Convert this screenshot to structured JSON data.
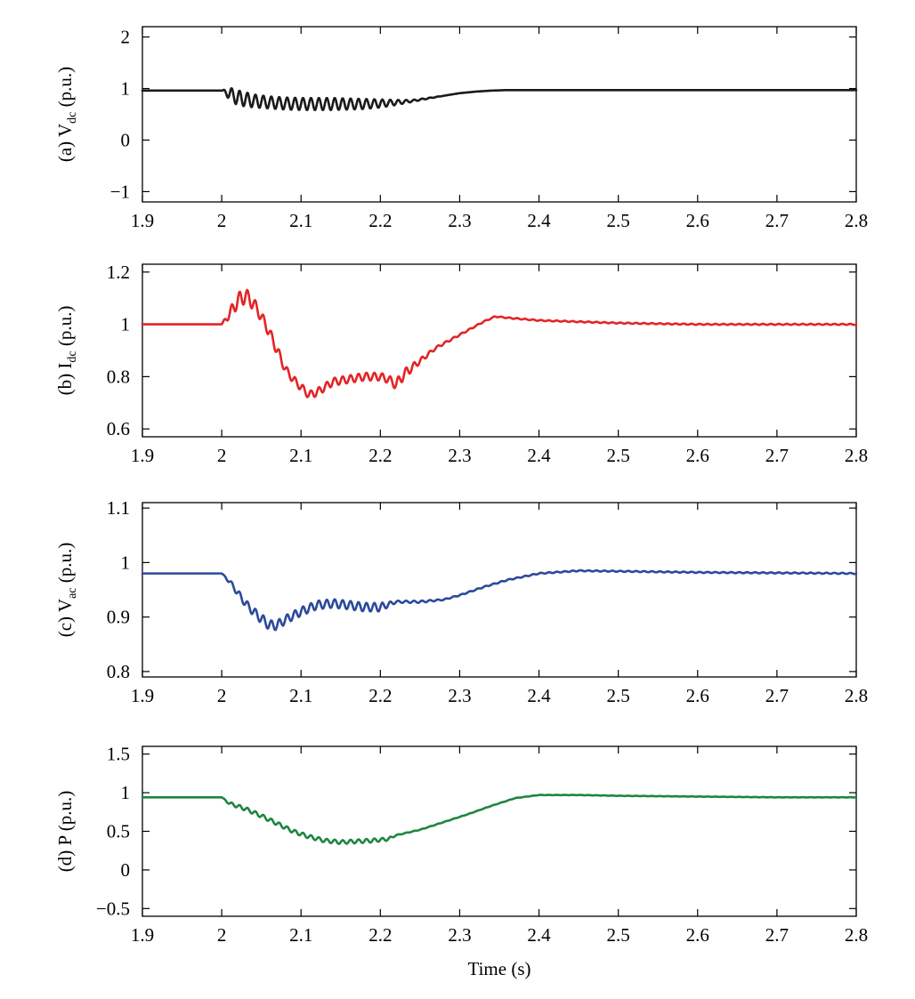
{
  "chart_data": [
    {
      "type": "line",
      "panel": "(a)",
      "ylabel_prefix": "(a) V",
      "ylabel_sub": "dc",
      "ylabel_suffix": " (p.u.)",
      "xlabel": "",
      "xlim": [
        1.9,
        2.8
      ],
      "ylim": [
        -1.2,
        2.2
      ],
      "xticks": [
        1.9,
        2.0,
        2.1,
        2.2,
        2.3,
        2.4,
        2.5,
        2.6,
        2.7,
        2.8
      ],
      "xtick_labels": [
        "1.9",
        "2",
        "2.1",
        "2.2",
        "2.3",
        "2.4",
        "2.5",
        "2.6",
        "2.7",
        "2.8"
      ],
      "yticks": [
        -1,
        0,
        1,
        2
      ],
      "ytick_labels": [
        "−1",
        "0",
        "1",
        "2"
      ],
      "color": "#1a1a1a",
      "series": [
        {
          "x": [
            1.9,
            2.0,
            2.01,
            2.02,
            2.04,
            2.06,
            2.08,
            2.1,
            2.12,
            2.14,
            2.16,
            2.18,
            2.2,
            2.22,
            2.24,
            2.26,
            2.28,
            2.3,
            2.32,
            2.34,
            2.36,
            2.4,
            2.5,
            2.6,
            2.7,
            2.8
          ],
          "y": [
            0.96,
            0.96,
            0.9,
            0.82,
            0.76,
            0.73,
            0.71,
            0.7,
            0.7,
            0.7,
            0.7,
            0.7,
            0.71,
            0.73,
            0.76,
            0.81,
            0.86,
            0.91,
            0.94,
            0.96,
            0.97,
            0.97,
            0.97,
            0.97,
            0.97,
            0.97
          ],
          "osc_amplitude": [
            0,
            0,
            0.12,
            0.15,
            0.13,
            0.12,
            0.12,
            0.12,
            0.12,
            0.12,
            0.11,
            0.1,
            0.08,
            0.05,
            0.02,
            0.01,
            0,
            0,
            0,
            0,
            0,
            0,
            0,
            0,
            0,
            0
          ],
          "osc_period": 0.01
        }
      ]
    },
    {
      "type": "line",
      "panel": "(b)",
      "ylabel_prefix": "(b) I",
      "ylabel_sub": "dc",
      "ylabel_suffix": " (p.u.)",
      "xlabel": "",
      "xlim": [
        1.9,
        2.8
      ],
      "ylim": [
        0.57,
        1.23
      ],
      "xticks": [
        1.9,
        2.0,
        2.1,
        2.2,
        2.3,
        2.4,
        2.5,
        2.6,
        2.7,
        2.8
      ],
      "xtick_labels": [
        "1.9",
        "2",
        "2.1",
        "2.2",
        "2.3",
        "2.4",
        "2.5",
        "2.6",
        "2.7",
        "2.8"
      ],
      "yticks": [
        0.6,
        0.8,
        1.0,
        1.2
      ],
      "ytick_labels": [
        "0.6",
        "0.8",
        "1",
        "1.2"
      ],
      "color": "#e32426",
      "series": [
        {
          "x": [
            1.9,
            2.0,
            2.01,
            2.02,
            2.03,
            2.04,
            2.05,
            2.06,
            2.07,
            2.08,
            2.09,
            2.1,
            2.11,
            2.12,
            2.13,
            2.14,
            2.16,
            2.18,
            2.2,
            2.21,
            2.22,
            2.23,
            2.25,
            2.27,
            2.3,
            2.33,
            2.345,
            2.36,
            2.4,
            2.5,
            2.6,
            2.7,
            2.8
          ],
          "y": [
            1.0,
            1.0,
            1.04,
            1.09,
            1.11,
            1.08,
            1.03,
            0.97,
            0.9,
            0.83,
            0.79,
            0.76,
            0.73,
            0.74,
            0.76,
            0.78,
            0.79,
            0.8,
            0.8,
            0.79,
            0.77,
            0.81,
            0.86,
            0.91,
            0.96,
            1.01,
            1.03,
            1.025,
            1.015,
            1.005,
            1.0,
            1.0,
            1.0
          ],
          "osc_amplitude": [
            0,
            0,
            0.02,
            0.03,
            0.03,
            0.025,
            0.02,
            0.02,
            0.02,
            0.015,
            0.015,
            0.015,
            0.015,
            0.015,
            0.015,
            0.015,
            0.015,
            0.015,
            0.015,
            0.015,
            0.02,
            0.02,
            0.01,
            0.005,
            0.003,
            0.002,
            0.002,
            0.002,
            0.002,
            0.002,
            0.002,
            0.002,
            0.002
          ],
          "osc_period": 0.01
        }
      ]
    },
    {
      "type": "line",
      "panel": "(c)",
      "ylabel_prefix": "(c) V",
      "ylabel_sub": "ac",
      "ylabel_suffix": " (p.u.)",
      "xlabel": "",
      "xlim": [
        1.9,
        2.8
      ],
      "ylim": [
        0.79,
        1.11
      ],
      "xticks": [
        1.9,
        2.0,
        2.1,
        2.2,
        2.3,
        2.4,
        2.5,
        2.6,
        2.7,
        2.8
      ],
      "xtick_labels": [
        "1.9",
        "2",
        "2.1",
        "2.2",
        "2.3",
        "2.4",
        "2.5",
        "2.6",
        "2.7",
        "2.8"
      ],
      "yticks": [
        0.8,
        0.9,
        1.0,
        1.1
      ],
      "ytick_labels": [
        "0.8",
        "0.9",
        "1",
        "1.1"
      ],
      "color": "#2b4a9c",
      "series": [
        {
          "x": [
            1.9,
            2.0,
            2.01,
            2.02,
            2.03,
            2.04,
            2.05,
            2.06,
            2.07,
            2.08,
            2.1,
            2.12,
            2.14,
            2.16,
            2.18,
            2.2,
            2.22,
            2.25,
            2.28,
            2.3,
            2.33,
            2.36,
            2.4,
            2.45,
            2.5,
            2.6,
            2.7,
            2.8
          ],
          "y": [
            0.98,
            0.98,
            0.965,
            0.945,
            0.925,
            0.91,
            0.897,
            0.885,
            0.885,
            0.895,
            0.91,
            0.922,
            0.925,
            0.922,
            0.918,
            0.918,
            0.928,
            0.928,
            0.932,
            0.94,
            0.955,
            0.968,
            0.98,
            0.985,
            0.984,
            0.982,
            0.981,
            0.98
          ],
          "osc_amplitude": [
            0,
            0,
            0.004,
            0.006,
            0.007,
            0.008,
            0.009,
            0.009,
            0.009,
            0.008,
            0.008,
            0.008,
            0.008,
            0.008,
            0.008,
            0.008,
            0.002,
            0.002,
            0.001,
            0.001,
            0.001,
            0.001,
            0.001,
            0.001,
            0.001,
            0.001,
            0.001,
            0.001
          ],
          "osc_period": 0.01
        }
      ]
    },
    {
      "type": "line",
      "panel": "(d)",
      "ylabel_prefix": "(d) P (p.u.)",
      "ylabel_sub": "",
      "ylabel_suffix": "",
      "xlabel": "Time (s)",
      "xlim": [
        1.9,
        2.8
      ],
      "ylim": [
        -0.6,
        1.6
      ],
      "xticks": [
        1.9,
        2.0,
        2.1,
        2.2,
        2.3,
        2.4,
        2.5,
        2.6,
        2.7,
        2.8
      ],
      "xtick_labels": [
        "1.9",
        "2",
        "2.1",
        "2.2",
        "2.3",
        "2.4",
        "2.5",
        "2.6",
        "2.7",
        "2.8"
      ],
      "yticks": [
        -0.5,
        0,
        0.5,
        1.0,
        1.5
      ],
      "ytick_labels": [
        "−0.5",
        "0",
        "0.5",
        "1",
        "1.5"
      ],
      "color": "#1e8540",
      "series": [
        {
          "x": [
            1.9,
            2.0,
            2.01,
            2.03,
            2.05,
            2.07,
            2.09,
            2.11,
            2.13,
            2.15,
            2.17,
            2.19,
            2.21,
            2.22,
            2.25,
            2.28,
            2.31,
            2.34,
            2.37,
            2.4,
            2.45,
            2.5,
            2.6,
            2.7,
            2.8
          ],
          "y": [
            0.94,
            0.94,
            0.86,
            0.79,
            0.7,
            0.6,
            0.5,
            0.43,
            0.38,
            0.36,
            0.37,
            0.38,
            0.4,
            0.45,
            0.52,
            0.62,
            0.72,
            0.83,
            0.93,
            0.97,
            0.97,
            0.96,
            0.95,
            0.94,
            0.94
          ],
          "osc_amplitude": [
            0,
            0,
            0.02,
            0.025,
            0.025,
            0.025,
            0.025,
            0.025,
            0.025,
            0.025,
            0.025,
            0.025,
            0.02,
            0.005,
            0.003,
            0.003,
            0.002,
            0.002,
            0.002,
            0.002,
            0.002,
            0.002,
            0.002,
            0.002,
            0.002
          ],
          "osc_period": 0.01
        }
      ]
    }
  ]
}
